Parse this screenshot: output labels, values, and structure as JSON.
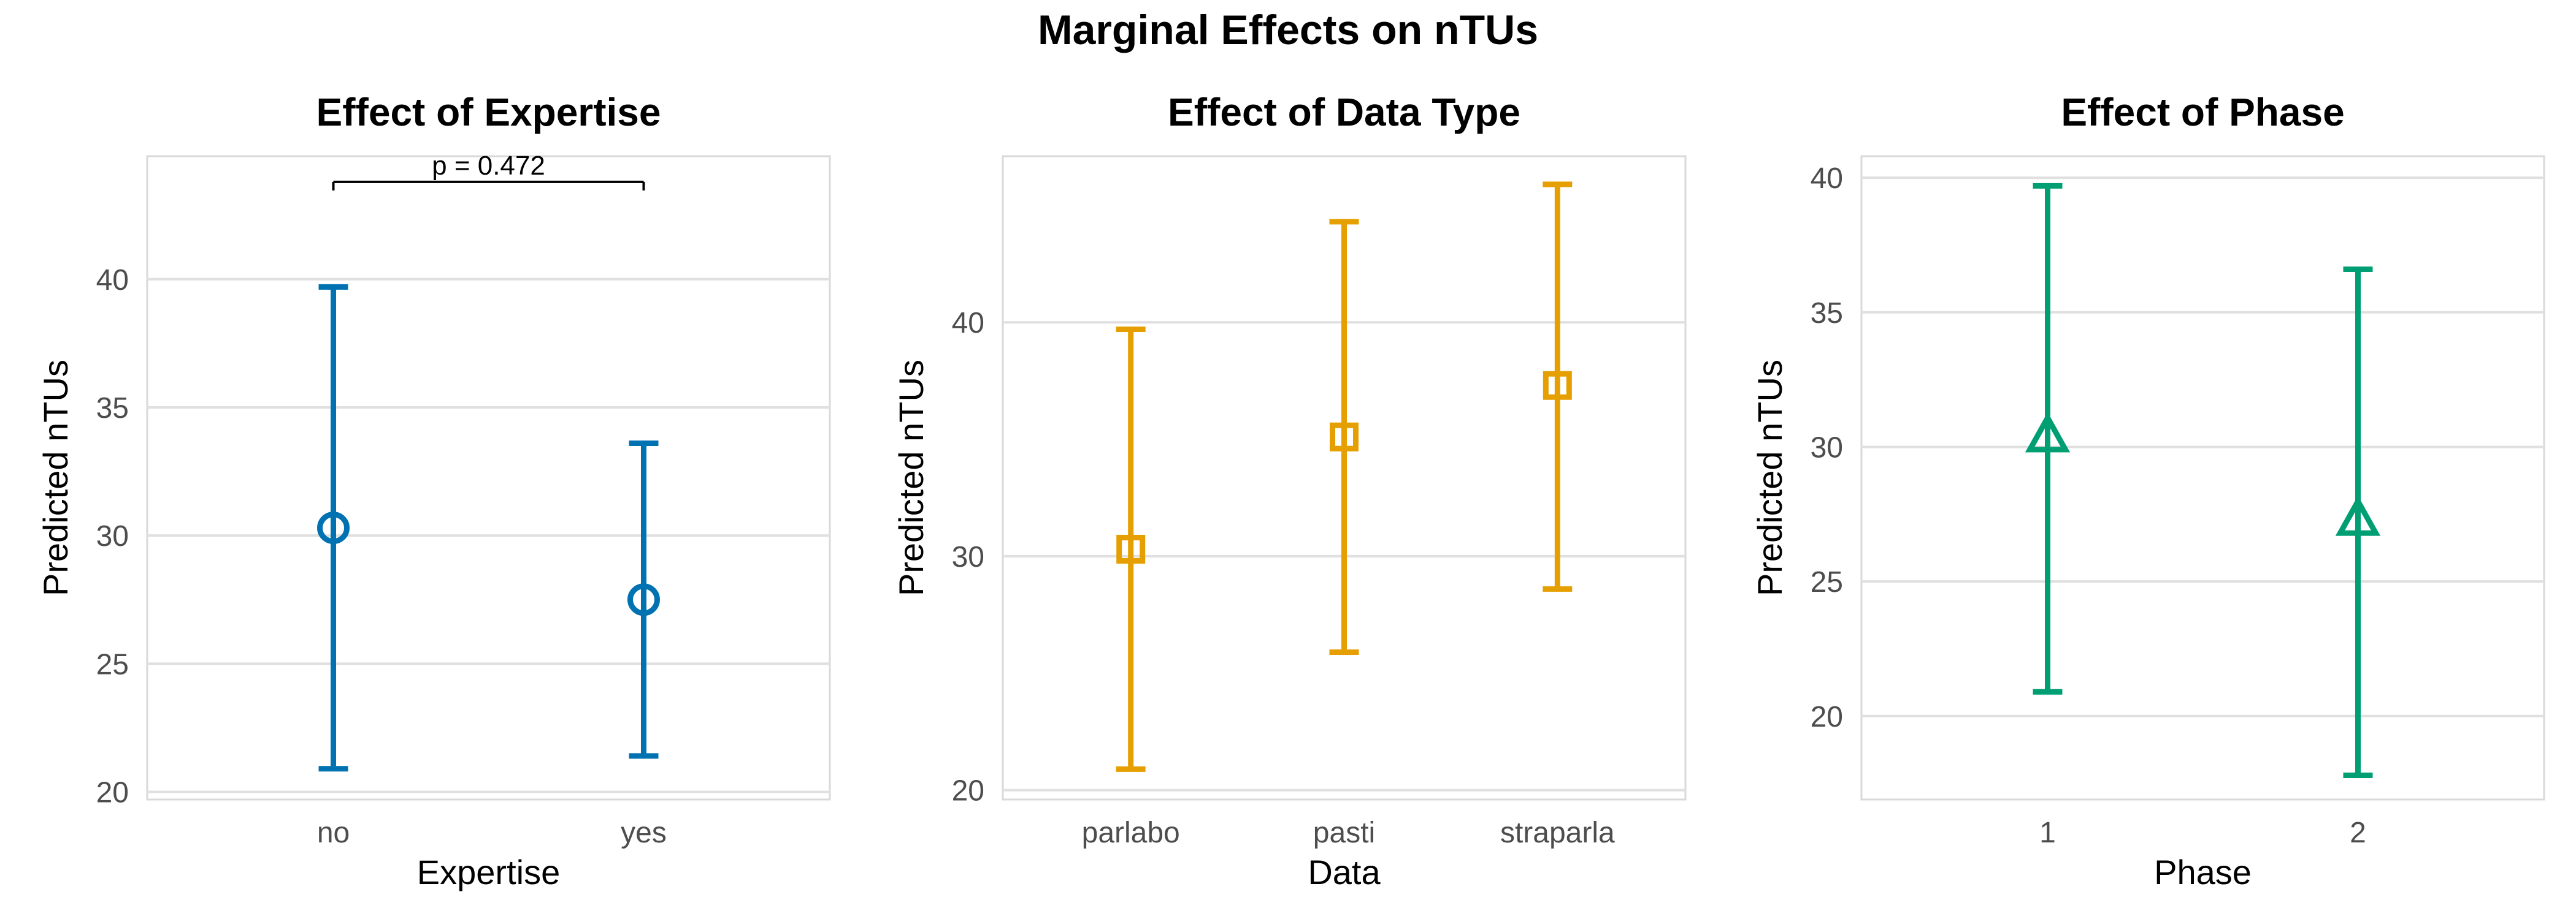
{
  "figure": {
    "title": "Marginal Effects on nTUs"
  },
  "chart_data": [
    {
      "type": "errorbar",
      "title": "Effect of Expertise",
      "xlabel": "Expertise",
      "ylabel": "Predicted nTUs",
      "categories": [
        "no",
        "yes"
      ],
      "series": [
        {
          "marker": "circle",
          "color": "#0072B2",
          "estimates": [
            30.3,
            27.5
          ],
          "lower": [
            20.9,
            21.4
          ],
          "upper": [
            39.7,
            33.6
          ]
        }
      ],
      "ylim": [
        19.7,
        44.8
      ],
      "yticks": [
        20,
        25,
        30,
        35,
        40
      ],
      "grid": true,
      "annotation": {
        "text": "p = 0.472",
        "from": "no",
        "to": "yes",
        "y": 43.8,
        "label_y": 44.2
      }
    },
    {
      "type": "errorbar",
      "title": "Effect of Data Type",
      "xlabel": "Data",
      "ylabel": "Predicted nTUs",
      "categories": [
        "parlabo",
        "pasti",
        "straparla"
      ],
      "series": [
        {
          "marker": "square",
          "color": "#E69F00",
          "estimates": [
            30.3,
            35.1,
            37.3
          ],
          "lower": [
            20.9,
            25.9,
            28.6
          ],
          "upper": [
            39.7,
            44.3,
            45.9
          ]
        }
      ],
      "ylim": [
        19.6,
        47.1
      ],
      "yticks": [
        20,
        30,
        40
      ],
      "grid": true
    },
    {
      "type": "errorbar",
      "title": "Effect of Phase",
      "xlabel": "Phase",
      "ylabel": "Predicted nTUs",
      "categories": [
        "1",
        "2"
      ],
      "series": [
        {
          "marker": "triangle",
          "color": "#009E73",
          "estimates": [
            30.4,
            27.3
          ],
          "lower": [
            20.9,
            17.8
          ],
          "upper": [
            39.7,
            36.6
          ]
        }
      ],
      "ylim": [
        16.9,
        40.8
      ],
      "yticks": [
        20,
        25,
        30,
        35,
        40
      ],
      "grid": true
    }
  ]
}
